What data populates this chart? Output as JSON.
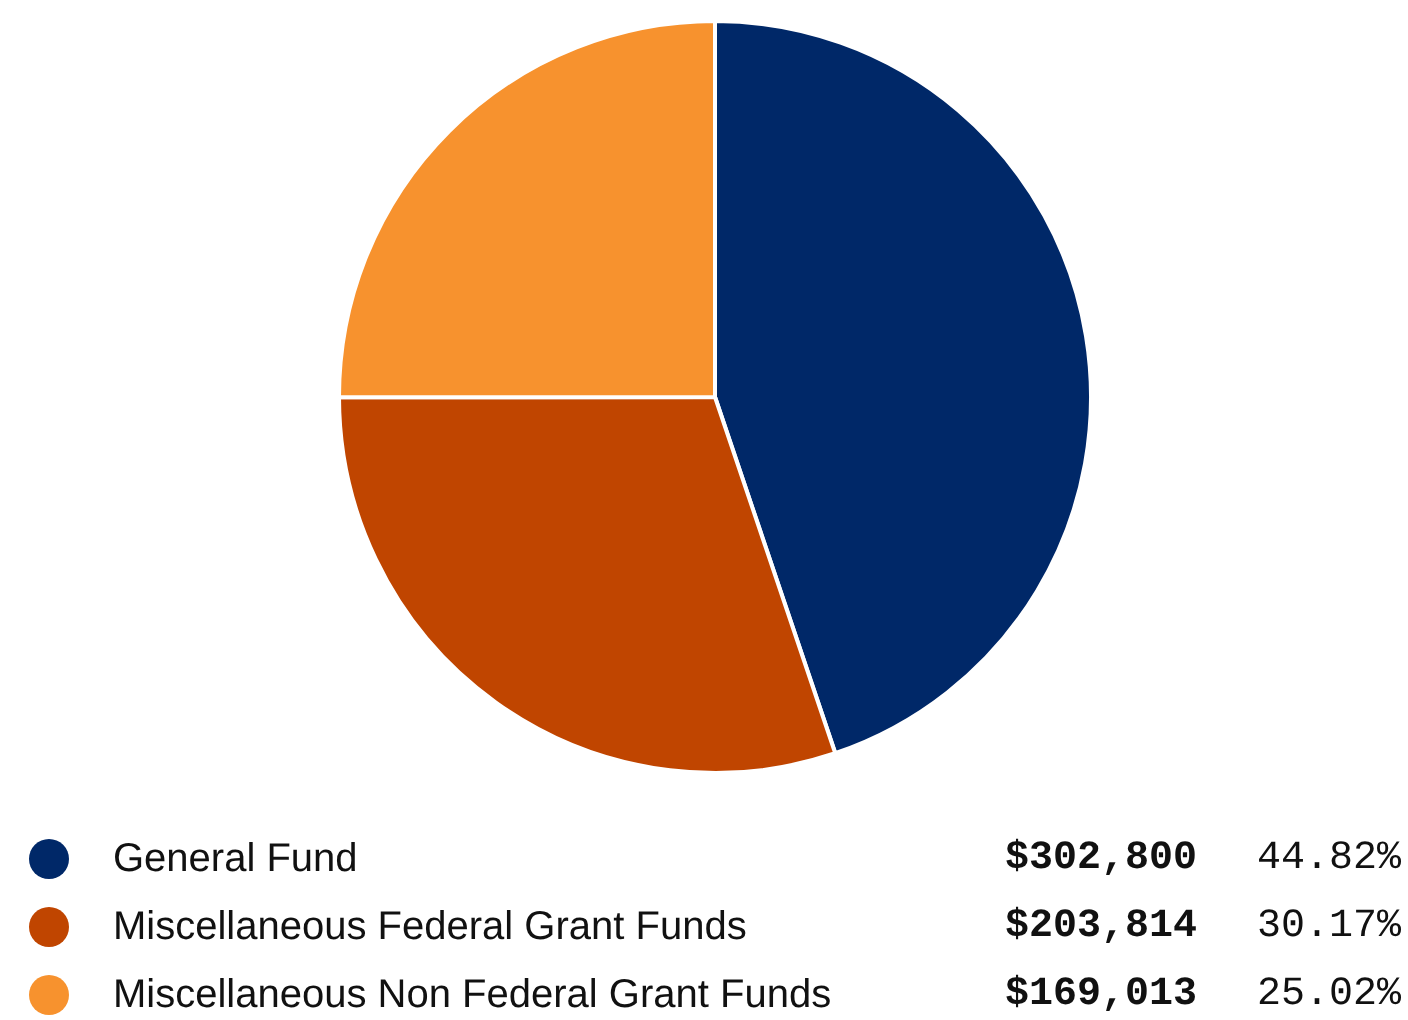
{
  "chart_data": {
    "type": "pie",
    "categories": [
      "General Fund",
      "Miscellaneous Federal Grant Funds",
      "Miscellaneous Non Federal Grant Funds"
    ],
    "values": [
      302800,
      203814,
      169013
    ],
    "colors": [
      "#002868",
      "#c04500",
      "#f7922e"
    ],
    "value_labels": [
      "$302,800",
      "$203,814",
      "$169,013"
    ],
    "annotations": [
      "44.82%",
      "30.17%",
      "25.02%"
    ],
    "legend": "bottom"
  }
}
